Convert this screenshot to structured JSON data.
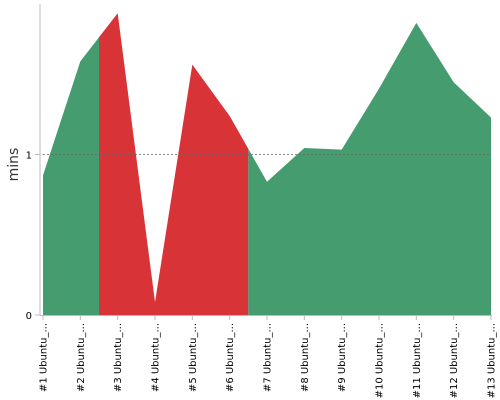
{
  "chart_data": {
    "type": "area",
    "ylabel": "mins",
    "xlabel": "",
    "title": "",
    "grid": false,
    "reference_line": 1,
    "ylim": [
      0,
      1.9
    ],
    "y_ticks": [
      0,
      1
    ],
    "categories": [
      "#1 Ubuntu_...",
      "#2 Ubuntu_...",
      "#3 Ubuntu_...",
      "#4 Ubuntu_...",
      "#5 Ubuntu_...",
      "#6 Ubuntu_...",
      "#7 Ubuntu_...",
      "#8 Ubuntu_...",
      "#9 Ubuntu_...",
      "#10 Ubuntu_...",
      "#11 Ubuntu_...",
      "#12 Ubuntu_...",
      "#13 Ubuntu_..."
    ],
    "values": [
      0.87,
      1.58,
      1.88,
      0.08,
      1.56,
      1.24,
      0.83,
      1.04,
      1.03,
      1.41,
      1.82,
      1.45,
      1.23
    ],
    "colors": {
      "ok": "#459c6e",
      "failed": "#d83336"
    },
    "segments": [
      {
        "status": "ok",
        "from": 0,
        "to": 1.5
      },
      {
        "status": "failed",
        "from": 1.5,
        "to": 5.5
      },
      {
        "status": "ok",
        "from": 5.5,
        "to": 12
      }
    ]
  }
}
